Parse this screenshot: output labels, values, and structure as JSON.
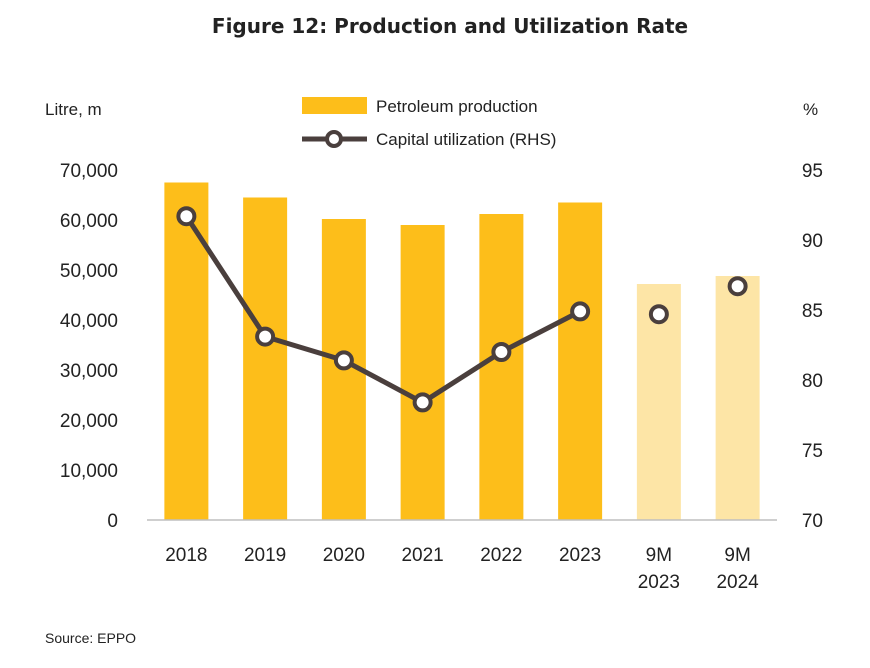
{
  "title": "Figure 12: Production and Utilization Rate",
  "source": "Source: EPPO",
  "colors": {
    "bar": "#FDBE1A",
    "bar_light": "#FDE5A6",
    "line": "#4A3F3D",
    "marker_fill": "#FFFFFF",
    "axis": "#BFBFBF"
  },
  "chart_data": {
    "type": "bar",
    "categories": [
      [
        "2018"
      ],
      [
        "2019"
      ],
      [
        "2020"
      ],
      [
        "2021"
      ],
      [
        "2022"
      ],
      [
        "2023"
      ],
      [
        "9M",
        "2023"
      ],
      [
        "9M",
        "2024"
      ]
    ],
    "series": [
      {
        "name": "Petroleum production",
        "type": "bar",
        "axis": "left",
        "values": [
          67500,
          64500,
          60200,
          59000,
          61200,
          63500,
          47200,
          48800
        ],
        "highlight": [
          false,
          false,
          false,
          false,
          false,
          false,
          true,
          true
        ]
      },
      {
        "name": "Capital utilization (RHS)",
        "type": "line",
        "axis": "right",
        "values": [
          91.7,
          83.1,
          81.4,
          78.4,
          82.0,
          84.9,
          84.7,
          86.7
        ],
        "connected": [
          true,
          true,
          true,
          true,
          true,
          true,
          false,
          false
        ]
      }
    ],
    "ylabel": "Litre, m",
    "ylabel_right": "%",
    "ylim": [
      0,
      70000
    ],
    "yticks": [
      "0",
      "10,000",
      "20,000",
      "30,000",
      "40,000",
      "50,000",
      "60,000",
      "70,000"
    ],
    "ylim_right": [
      70,
      95
    ],
    "yticks_right": [
      "70",
      "75",
      "80",
      "85",
      "90",
      "95"
    ],
    "grid": false,
    "legend": "top-center"
  }
}
